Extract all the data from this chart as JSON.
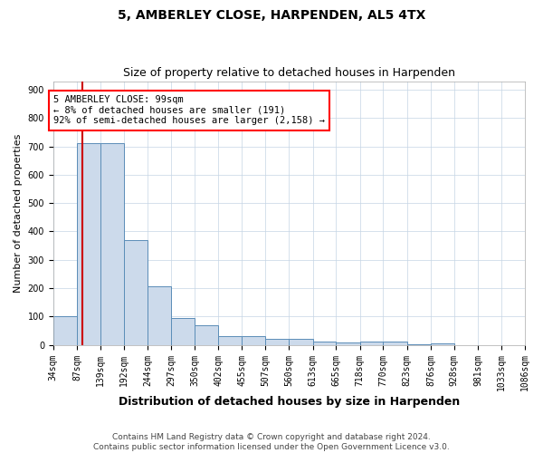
{
  "title": "5, AMBERLEY CLOSE, HARPENDEN, AL5 4TX",
  "subtitle": "Size of property relative to detached houses in Harpenden",
  "xlabel": "Distribution of detached houses by size in Harpenden",
  "ylabel": "Number of detached properties",
  "bar_color": "#ccdaeb",
  "bar_edge_color": "#5b8db8",
  "bin_labels": [
    "34sqm",
    "87sqm",
    "139sqm",
    "192sqm",
    "244sqm",
    "297sqm",
    "350sqm",
    "402sqm",
    "455sqm",
    "507sqm",
    "560sqm",
    "613sqm",
    "665sqm",
    "718sqm",
    "770sqm",
    "823sqm",
    "876sqm",
    "928sqm",
    "981sqm",
    "1033sqm",
    "1086sqm"
  ],
  "bin_edges": [
    34,
    87,
    139,
    192,
    244,
    297,
    350,
    402,
    455,
    507,
    560,
    613,
    665,
    718,
    770,
    823,
    876,
    928,
    981,
    1033,
    1086
  ],
  "bar_heights": [
    100,
    710,
    710,
    370,
    205,
    95,
    70,
    30,
    30,
    20,
    20,
    10,
    7,
    10,
    10,
    1,
    5,
    0,
    0,
    0
  ],
  "property_size": 99,
  "red_line_color": "#cc0000",
  "annotation_line1": "5 AMBERLEY CLOSE: 99sqm",
  "annotation_line2": "← 8% of detached houses are smaller (191)",
  "annotation_line3": "92% of semi-detached houses are larger (2,158) →",
  "ylim": [
    0,
    930
  ],
  "yticks": [
    0,
    100,
    200,
    300,
    400,
    500,
    600,
    700,
    800,
    900
  ],
  "grid_color": "#c5d5e5",
  "footnote": "Contains HM Land Registry data © Crown copyright and database right 2024.\nContains public sector information licensed under the Open Government Licence v3.0.",
  "title_fontsize": 10,
  "subtitle_fontsize": 9,
  "xlabel_fontsize": 9,
  "ylabel_fontsize": 8,
  "tick_fontsize": 7,
  "annotation_fontsize": 7.5,
  "footnote_fontsize": 6.5
}
